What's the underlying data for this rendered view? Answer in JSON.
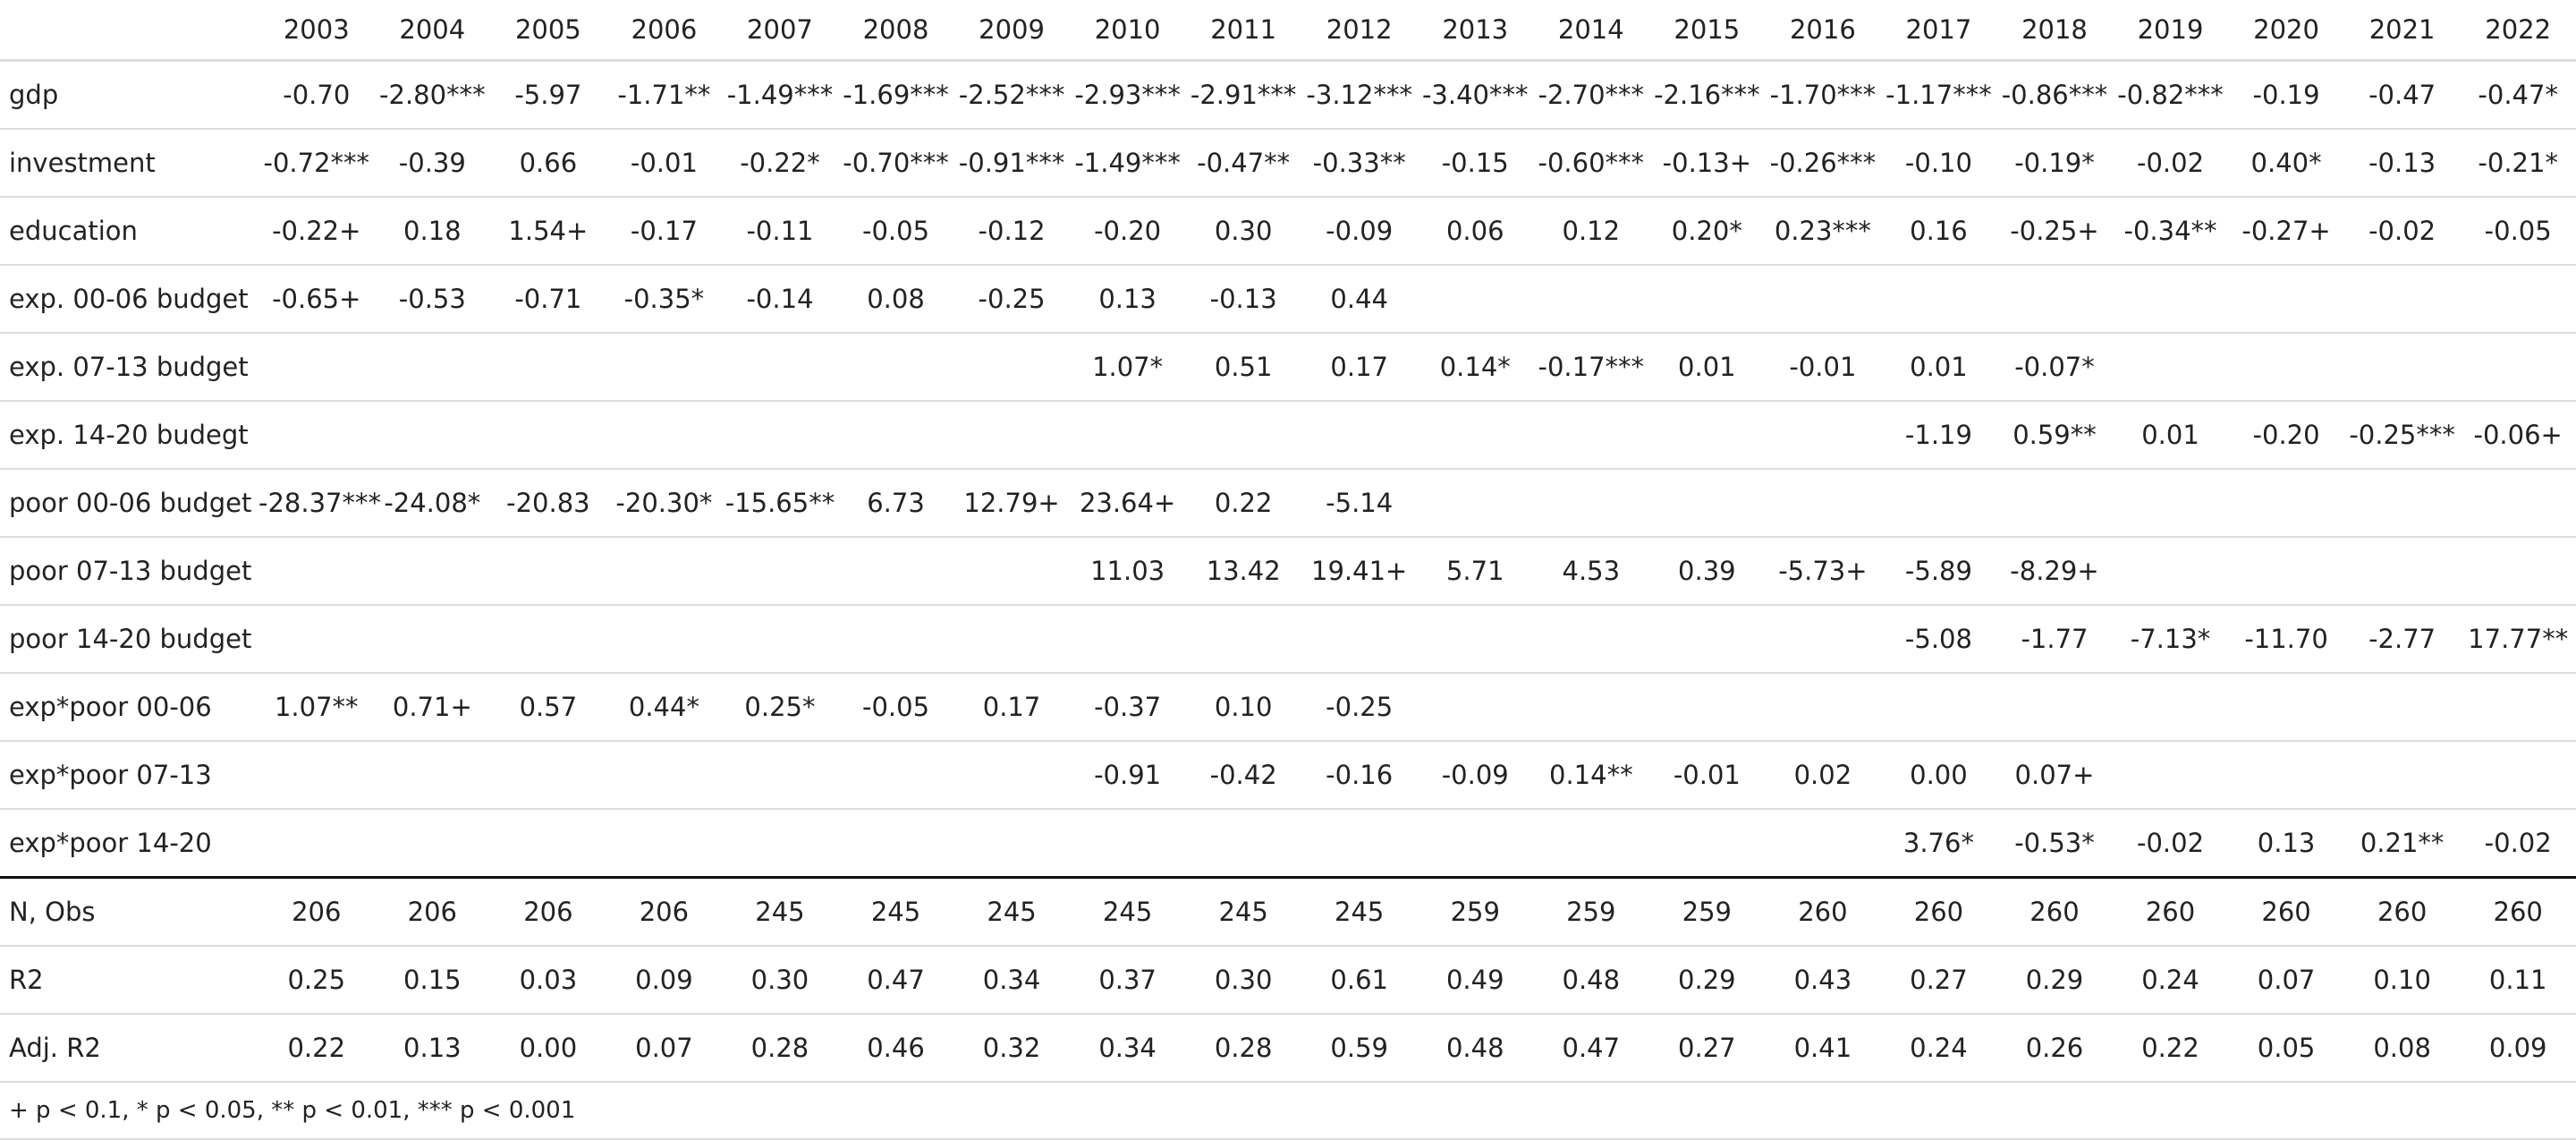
{
  "table": {
    "columns": [
      "",
      "2003",
      "2004",
      "2005",
      "2006",
      "2007",
      "2008",
      "2009",
      "2010",
      "2011",
      "2012",
      "2013",
      "2014",
      "2015",
      "2016",
      "2017",
      "2018",
      "2019",
      "2020",
      "2021",
      "2022"
    ],
    "coef_rows": [
      {
        "label": "gdp",
        "cells": [
          "-0.70",
          "-2.80***",
          "-5.97",
          "-1.71**",
          "-1.49***",
          "-1.69***",
          "-2.52***",
          "-2.93***",
          "-2.91***",
          "-3.12***",
          "-3.40***",
          "-2.70***",
          "-2.16***",
          "-1.70***",
          "-1.17***",
          "-0.86***",
          "-0.82***",
          "-0.19",
          "-0.47",
          "-0.47*"
        ]
      },
      {
        "label": "investment",
        "cells": [
          "-0.72***",
          "-0.39",
          "0.66",
          "-0.01",
          "-0.22*",
          "-0.70***",
          "-0.91***",
          "-1.49***",
          "-0.47**",
          "-0.33**",
          "-0.15",
          "-0.60***",
          "-0.13+",
          "-0.26***",
          "-0.10",
          "-0.19*",
          "-0.02",
          "0.40*",
          "-0.13",
          "-0.21*"
        ]
      },
      {
        "label": "education",
        "cells": [
          "-0.22+",
          "0.18",
          "1.54+",
          "-0.17",
          "-0.11",
          "-0.05",
          "-0.12",
          "-0.20",
          "0.30",
          "-0.09",
          "0.06",
          "0.12",
          "0.20*",
          "0.23***",
          "0.16",
          "-0.25+",
          "-0.34**",
          "-0.27+",
          "-0.02",
          "-0.05"
        ]
      },
      {
        "label": "exp. 00-06 budget",
        "cells": [
          "-0.65+",
          "-0.53",
          "-0.71",
          "-0.35*",
          "-0.14",
          "0.08",
          "-0.25",
          "0.13",
          "-0.13",
          "0.44",
          "",
          "",
          "",
          "",
          "",
          "",
          "",
          "",
          "",
          ""
        ]
      },
      {
        "label": "exp. 07-13 budget",
        "cells": [
          "",
          "",
          "",
          "",
          "",
          "",
          "",
          "1.07*",
          "0.51",
          "0.17",
          "0.14*",
          "-0.17***",
          "0.01",
          "-0.01",
          "0.01",
          "-0.07*",
          "",
          "",
          "",
          ""
        ]
      },
      {
        "label": "exp. 14-20 budegt",
        "cells": [
          "",
          "",
          "",
          "",
          "",
          "",
          "",
          "",
          "",
          "",
          "",
          "",
          "",
          "",
          "-1.19",
          "0.59**",
          "0.01",
          "-0.20",
          "-0.25***",
          "-0.06+"
        ]
      },
      {
        "label": "poor 00-06 budget",
        "cells": [
          "-28.37***",
          "-24.08*",
          "-20.83",
          "-20.30*",
          "-15.65**",
          "6.73",
          "12.79+",
          "23.64+",
          "0.22",
          "-5.14",
          "",
          "",
          "",
          "",
          "",
          "",
          "",
          "",
          "",
          ""
        ]
      },
      {
        "label": "poor 07-13 budget",
        "cells": [
          "",
          "",
          "",
          "",
          "",
          "",
          "",
          "11.03",
          "13.42",
          "19.41+",
          "5.71",
          "4.53",
          "0.39",
          "-5.73+",
          "-5.89",
          "-8.29+",
          "",
          "",
          "",
          ""
        ]
      },
      {
        "label": "poor 14-20 budget",
        "cells": [
          "",
          "",
          "",
          "",
          "",
          "",
          "",
          "",
          "",
          "",
          "",
          "",
          "",
          "",
          "-5.08",
          "-1.77",
          "-7.13*",
          "-11.70",
          "-2.77",
          "17.77**"
        ]
      },
      {
        "label": "exp*poor 00-06",
        "cells": [
          "1.07**",
          "0.71+",
          "0.57",
          "0.44*",
          "0.25*",
          "-0.05",
          "0.17",
          "-0.37",
          "0.10",
          "-0.25",
          "",
          "",
          "",
          "",
          "",
          "",
          "",
          "",
          "",
          ""
        ]
      },
      {
        "label": "exp*poor 07-13",
        "cells": [
          "",
          "",
          "",
          "",
          "",
          "",
          "",
          "-0.91",
          "-0.42",
          "-0.16",
          "-0.09",
          "0.14**",
          "-0.01",
          "0.02",
          "0.00",
          "0.07+",
          "",
          "",
          "",
          ""
        ]
      },
      {
        "label": "exp*poor 14-20",
        "cells": [
          "",
          "",
          "",
          "",
          "",
          "",
          "",
          "",
          "",
          "",
          "",
          "",
          "",
          "",
          "3.76*",
          "-0.53*",
          "-0.02",
          "0.13",
          "0.21**",
          "-0.02"
        ]
      }
    ],
    "stat_rows": [
      {
        "label": "N, Obs",
        "cells": [
          "206",
          "206",
          "206",
          "206",
          "245",
          "245",
          "245",
          "245",
          "245",
          "245",
          "259",
          "259",
          "259",
          "260",
          "260",
          "260",
          "260",
          "260",
          "260",
          "260"
        ]
      },
      {
        "label": "R2",
        "cells": [
          "0.25",
          "0.15",
          "0.03",
          "0.09",
          "0.30",
          "0.47",
          "0.34",
          "0.37",
          "0.30",
          "0.61",
          "0.49",
          "0.48",
          "0.29",
          "0.43",
          "0.27",
          "0.29",
          "0.24",
          "0.07",
          "0.10",
          "0.11"
        ]
      },
      {
        "label": "Adj. R2",
        "cells": [
          "0.22",
          "0.13",
          "0.00",
          "0.07",
          "0.28",
          "0.46",
          "0.32",
          "0.34",
          "0.28",
          "0.59",
          "0.48",
          "0.47",
          "0.27",
          "0.41",
          "0.24",
          "0.26",
          "0.22",
          "0.05",
          "0.08",
          "0.09"
        ]
      }
    ],
    "footnote": "+ p < 0.1, * p < 0.05, ** p < 0.01, *** p < 0.001"
  }
}
